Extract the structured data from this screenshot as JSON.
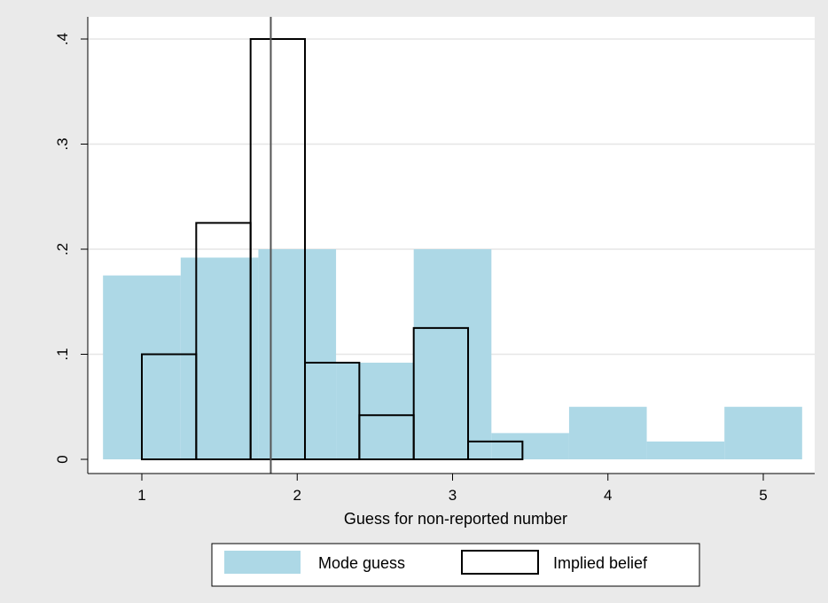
{
  "chart_data": {
    "type": "bar",
    "xlabel": "Guess for non-reported number",
    "ylabel": "",
    "xlim": [
      0.7,
      5.35
    ],
    "ylim": [
      0,
      0.4
    ],
    "x_ticks": [
      {
        "value": 1,
        "label": "1"
      },
      {
        "value": 2,
        "label": "2"
      },
      {
        "value": 3,
        "label": "3"
      },
      {
        "value": 4,
        "label": "4"
      },
      {
        "value": 5,
        "label": "5"
      }
    ],
    "y_ticks": [
      {
        "value": 0,
        "label": "0"
      },
      {
        "value": 0.1,
        "label": ".1"
      },
      {
        "value": 0.2,
        "label": ".2"
      },
      {
        "value": 0.3,
        "label": ".3"
      },
      {
        "value": 0.4,
        "label": ".4"
      }
    ],
    "grid": "horizontal",
    "legend_position": "bottom",
    "series": [
      {
        "name": "Mode guess",
        "style": "filled",
        "color": "#add8e6",
        "bins": [
          {
            "x0": 0.75,
            "x1": 1.25,
            "value": 0.175
          },
          {
            "x0": 1.25,
            "x1": 1.75,
            "value": 0.192
          },
          {
            "x0": 1.75,
            "x1": 2.25,
            "value": 0.2
          },
          {
            "x0": 2.25,
            "x1": 2.75,
            "value": 0.092
          },
          {
            "x0": 2.75,
            "x1": 3.25,
            "value": 0.2
          },
          {
            "x0": 3.25,
            "x1": 3.75,
            "value": 0.025
          },
          {
            "x0": 3.75,
            "x1": 4.25,
            "value": 0.05
          },
          {
            "x0": 4.25,
            "x1": 4.75,
            "value": 0.017
          },
          {
            "x0": 4.75,
            "x1": 5.25,
            "value": 0.05
          }
        ]
      },
      {
        "name": "Implied belief",
        "style": "outline",
        "color": "#000000",
        "bins": [
          {
            "x0": 1.0,
            "x1": 1.35,
            "value": 0.1
          },
          {
            "x0": 1.35,
            "x1": 1.7,
            "value": 0.225
          },
          {
            "x0": 1.7,
            "x1": 2.05,
            "value": 0.4
          },
          {
            "x0": 2.05,
            "x1": 2.4,
            "value": 0.092
          },
          {
            "x0": 2.4,
            "x1": 2.75,
            "value": 0.042
          },
          {
            "x0": 2.75,
            "x1": 3.1,
            "value": 0.125
          },
          {
            "x0": 3.1,
            "x1": 3.45,
            "value": 0.017
          }
        ]
      }
    ],
    "reference_line": {
      "x": 1.83,
      "color": "#555555"
    }
  },
  "colors": {
    "page_background": "#eaeaea",
    "plot_background": "#ffffff",
    "grid": "#e6e6e6"
  }
}
